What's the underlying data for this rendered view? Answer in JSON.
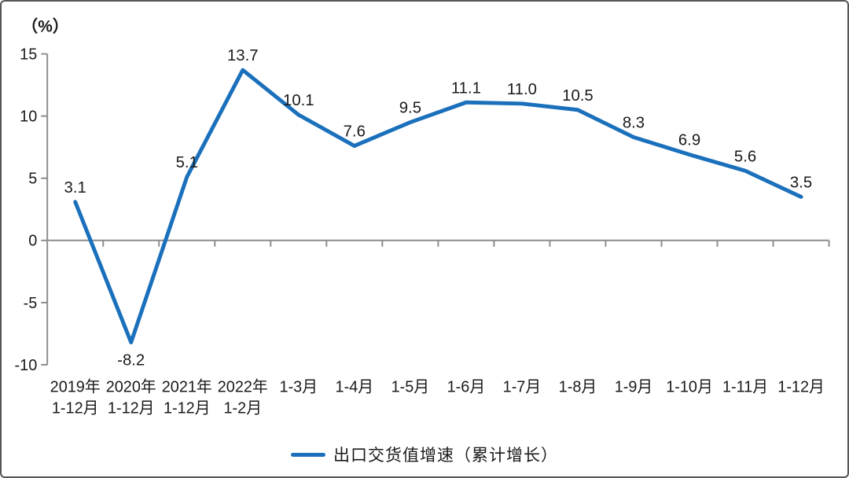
{
  "chart_data": {
    "type": "line",
    "title": "（%）",
    "categories": [
      [
        "2019年",
        "1-12月"
      ],
      [
        "2020年",
        "1-12月"
      ],
      [
        "2021年",
        "1-12月"
      ],
      [
        "2022年",
        "1-2月"
      ],
      [
        "1-3月"
      ],
      [
        "1-4月"
      ],
      [
        "1-5月"
      ],
      [
        "1-6月"
      ],
      [
        "1-7月"
      ],
      [
        "1-8月"
      ],
      [
        "1-9月"
      ],
      [
        "1-10月"
      ],
      [
        "1-11月"
      ],
      [
        "1-12月"
      ]
    ],
    "series": [
      {
        "name": "出口交货值增速（累计增长）",
        "values": [
          3.1,
          -8.2,
          5.1,
          13.7,
          10.1,
          7.6,
          9.5,
          11.1,
          11.0,
          10.5,
          8.3,
          6.9,
          5.6,
          3.5
        ]
      }
    ],
    "value_labels": [
      "3.1",
      "-8.2",
      "5.1",
      "13.7",
      "10.1",
      "7.6",
      "9.5",
      "11.1",
      "11.0",
      "10.5",
      "8.3",
      "6.9",
      "5.6",
      "3.5"
    ],
    "ylim": [
      -10,
      15
    ],
    "yticks": [
      15,
      10,
      5,
      0,
      -5,
      -10
    ],
    "grid": false,
    "legend_position": "bottom",
    "colors": {
      "line": "#1B70BC",
      "axis": "#8C8C8C",
      "text": "#1A1A1A"
    }
  }
}
